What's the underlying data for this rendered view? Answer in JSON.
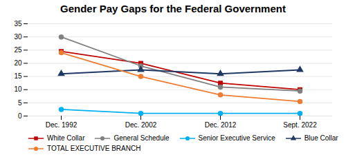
{
  "chart_data": {
    "type": "line",
    "title": "Gender Pay Gaps for the Federal Government",
    "categories": [
      "Dec. 1992",
      "Dec. 2002",
      "Dec. 2012",
      "Sept. 2022"
    ],
    "series": [
      {
        "name": "White Collar",
        "color": "#c00000",
        "marker": "square",
        "values": [
          24.5,
          20.0,
          12.5,
          10.0
        ]
      },
      {
        "name": "General Schedule",
        "color": "#808080",
        "marker": "circle",
        "values": [
          30.0,
          19.0,
          11.0,
          9.5
        ]
      },
      {
        "name": "Senior Executive Service",
        "color": "#00b0f0",
        "marker": "circle",
        "values": [
          2.5,
          1.0,
          1.0,
          1.0
        ]
      },
      {
        "name": "Blue Collar",
        "color": "#1f3864",
        "marker": "triangle",
        "values": [
          16.0,
          17.5,
          16.0,
          17.5
        ]
      },
      {
        "name": "TOTAL EXECUTIVE BRANCH",
        "color": "#ed7d31",
        "marker": "circle",
        "values": [
          24.0,
          15.0,
          8.0,
          5.5
        ]
      }
    ],
    "ylim": [
      0,
      35
    ],
    "yticks": [
      0,
      5,
      10,
      15,
      20,
      25,
      30,
      35
    ],
    "grid": true,
    "legend": "bottom"
  }
}
